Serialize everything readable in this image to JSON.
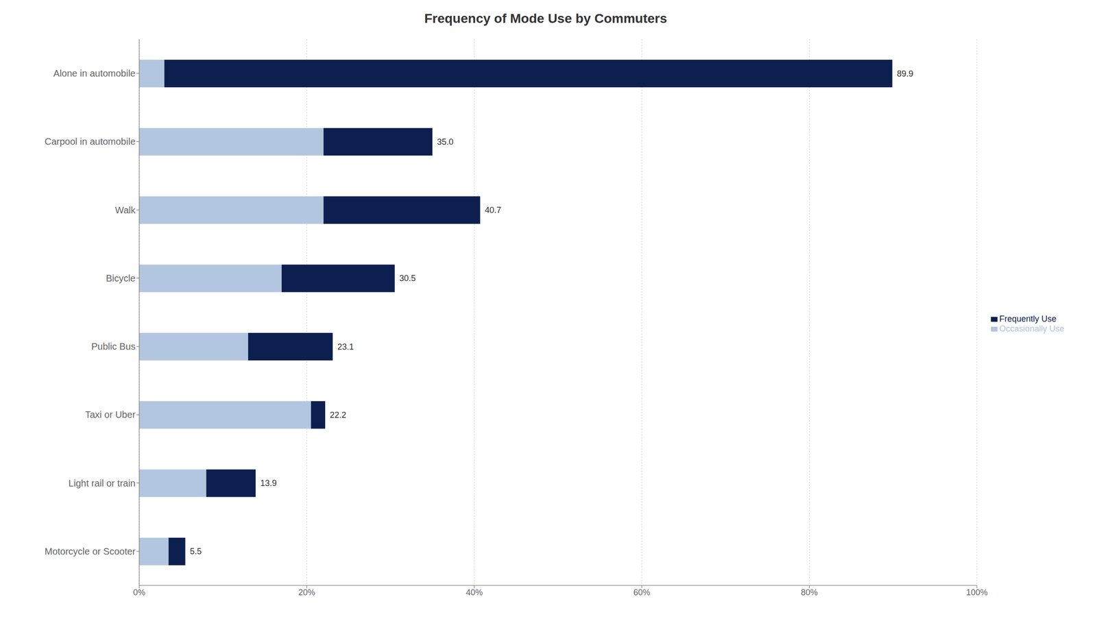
{
  "chart_data": {
    "type": "bar",
    "title": "Frequency of Mode Use by Commuters",
    "orientation": "horizontal",
    "stacked": true,
    "grid": true,
    "legend": "right",
    "categories": [
      "Alone in automobile",
      "Carpool in automobile",
      "Walk",
      "Bicycle",
      "Public Bus",
      "Taxi or Uber",
      "Light rail or train",
      "Motorcycle or Scooter"
    ],
    "series": [
      {
        "name": "Occasionally Use",
        "color": "#b3c6e0",
        "values": [
          3.0,
          22.0,
          22.0,
          17.0,
          13.0,
          20.5,
          8.0,
          3.5
        ]
      },
      {
        "name": "Frequently Use",
        "color": "#0d1f4e",
        "values": [
          86.9,
          13.0,
          18.7,
          13.5,
          10.1,
          1.7,
          5.9,
          2.0
        ]
      }
    ],
    "totals": [
      89.9,
      35.0,
      40.7,
      30.5,
      23.1,
      22.2,
      13.9,
      5.5
    ],
    "total_labels": [
      "89.9",
      "35.0",
      "40.7",
      "30.5",
      "23.1",
      "22.2",
      "13.9",
      "5.5"
    ],
    "xlim": [
      0,
      100
    ],
    "xticks": [
      {
        "value": 0,
        "label": "0%"
      },
      {
        "value": 20,
        "label": "20%"
      },
      {
        "value": 40,
        "label": "40%"
      },
      {
        "value": 60,
        "label": "60%"
      },
      {
        "value": 80,
        "label": "80%"
      },
      {
        "value": 100,
        "label": "100%"
      }
    ]
  }
}
